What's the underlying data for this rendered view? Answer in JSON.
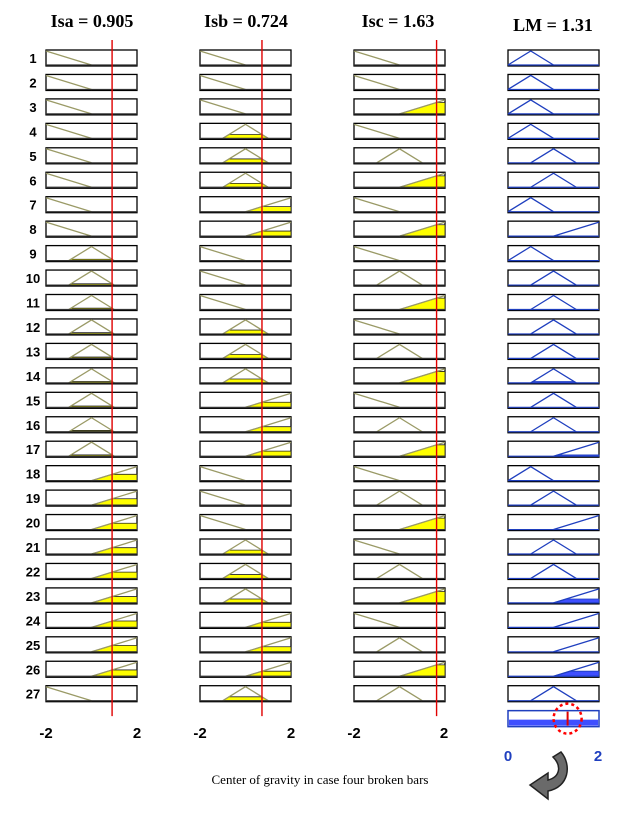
{
  "headers": [
    "Isa = 0.905",
    "Isb = 0.724",
    "Isc = 1.63",
    "LM = 1.31"
  ],
  "rows": [
    "1",
    "2",
    "3",
    "4",
    "5",
    "6",
    "7",
    "8",
    "9",
    "10",
    "11",
    "12",
    "13",
    "14",
    "15",
    "16",
    "17",
    "18",
    "19",
    "20",
    "21",
    "22",
    "23",
    "24",
    "25",
    "26",
    "27"
  ],
  "axis_ticks_inputs": [
    "-2",
    "2"
  ],
  "axis_ticks_output": [
    "0",
    "2"
  ],
  "caption": "Center of gravity in case four broken bars",
  "colors": {
    "fill": "#ffff00",
    "mf_line": "#9a9a66",
    "out_line": "#1f3fbf",
    "out_fill": "#3f4fff",
    "marker": "#e00000",
    "cog_circle": "#ff0000"
  },
  "diagram": {
    "input_range": [
      -2,
      2
    ],
    "output_range": [
      0,
      2
    ],
    "input_values": [
      0.905,
      0.724,
      1.63
    ],
    "output_value": 1.31,
    "mf_shapes": {
      "N": [
        -2,
        -2,
        0
      ],
      "Z": [
        -1,
        0,
        1
      ],
      "P": [
        0,
        2,
        2
      ],
      "S": [
        0,
        0.5,
        1
      ],
      "M": [
        0.5,
        1,
        1.5
      ],
      "L": [
        1,
        2,
        2
      ]
    },
    "rules": [
      [
        "N",
        "N",
        "N",
        "S"
      ],
      [
        "N",
        "N",
        "N",
        "S"
      ],
      [
        "N",
        "N",
        "P",
        "S"
      ],
      [
        "N",
        "Z",
        "N",
        "S"
      ],
      [
        "N",
        "Z",
        "Z",
        "M"
      ],
      [
        "N",
        "Z",
        "P",
        "M"
      ],
      [
        "N",
        "P",
        "N",
        "S"
      ],
      [
        "N",
        "P",
        "P",
        "L"
      ],
      [
        "Z",
        "N",
        "N",
        "S"
      ],
      [
        "Z",
        "N",
        "Z",
        "M"
      ],
      [
        "Z",
        "N",
        "P",
        "M"
      ],
      [
        "Z",
        "Z",
        "N",
        "M"
      ],
      [
        "Z",
        "Z",
        "Z",
        "M"
      ],
      [
        "Z",
        "Z",
        "P",
        "M"
      ],
      [
        "Z",
        "P",
        "N",
        "M"
      ],
      [
        "Z",
        "P",
        "Z",
        "M"
      ],
      [
        "Z",
        "P",
        "P",
        "L"
      ],
      [
        "P",
        "N",
        "N",
        "S"
      ],
      [
        "P",
        "N",
        "Z",
        "M"
      ],
      [
        "P",
        "N",
        "P",
        "L"
      ],
      [
        "P",
        "Z",
        "N",
        "M"
      ],
      [
        "P",
        "Z",
        "Z",
        "M"
      ],
      [
        "P",
        "Z",
        "P",
        "L"
      ],
      [
        "P",
        "P",
        "N",
        "L"
      ],
      [
        "P",
        "P",
        "Z",
        "L"
      ],
      [
        "P",
        "P",
        "P",
        "L"
      ],
      [
        "N",
        "Z",
        "Z",
        "M"
      ]
    ]
  }
}
